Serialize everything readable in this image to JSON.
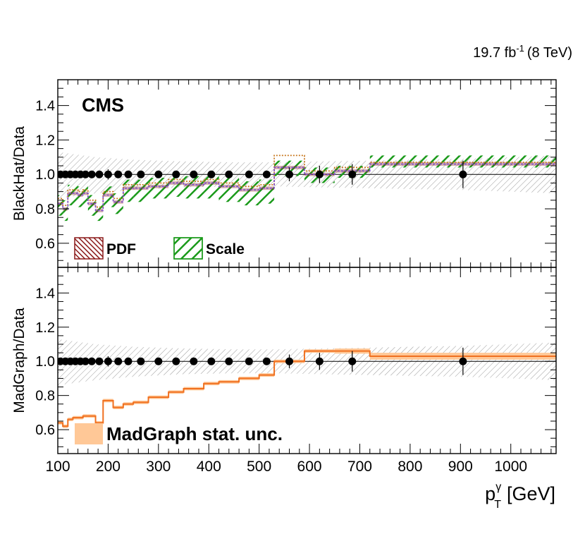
{
  "header": {
    "lumi_value": "19.7 fb",
    "lumi_exp": "-1",
    "lumi_energy": "(8 TeV)"
  },
  "x_axis": {
    "label_main": "p",
    "label_sup": "γ",
    "label_sub": "T",
    "label_unit": "[GeV]",
    "range": [
      100,
      1090
    ],
    "major_ticks": [
      100,
      200,
      300,
      400,
      500,
      600,
      700,
      800,
      900,
      1000
    ],
    "tick_labels": [
      "100",
      "200",
      "300",
      "400",
      "500",
      "600",
      "700",
      "800",
      "900",
      "1000"
    ]
  },
  "colors": {
    "pdf": "#8b1a1a",
    "scale": "#1a9a1a",
    "madgraph": "#f07020",
    "madgraph_band": "#ffc897",
    "hatch": "#9a9a9a",
    "data": "#000000"
  },
  "chart_data": [
    {
      "type": "line",
      "panel": "top",
      "badge": "CMS",
      "ylabel": "BlackHat/Data",
      "ylim": [
        0.46,
        1.55
      ],
      "y_ticks": [
        0.6,
        0.8,
        1.0,
        1.2,
        1.4
      ],
      "y_tick_labels": [
        "0.6",
        "0.8",
        "1.0",
        "1.2",
        "1.4"
      ],
      "legend": [
        {
          "key": "pdf",
          "label": "PDF"
        },
        {
          "key": "scale",
          "label": "Scale"
        }
      ],
      "bin_edges": [
        100,
        110,
        120,
        130,
        140,
        150,
        160,
        175,
        190,
        210,
        230,
        250,
        280,
        320,
        350,
        390,
        420,
        460,
        500,
        530,
        590,
        650,
        720,
        1090
      ],
      "central": [
        0.83,
        0.8,
        0.89,
        0.89,
        0.88,
        0.89,
        0.83,
        0.79,
        0.88,
        0.84,
        0.92,
        0.92,
        0.93,
        0.95,
        0.94,
        0.95,
        0.93,
        0.91,
        0.92,
        1.04,
        1.0,
        1.02,
        1.06
      ],
      "scale_band": {
        "low": [
          0.76,
          0.73,
          0.82,
          0.82,
          0.81,
          0.82,
          0.76,
          0.73,
          0.81,
          0.77,
          0.84,
          0.84,
          0.86,
          0.87,
          0.86,
          0.86,
          0.84,
          0.82,
          0.83,
          0.99,
          0.95,
          0.98,
          1.04
        ],
        "high": [
          0.88,
          0.85,
          0.94,
          0.94,
          0.93,
          0.94,
          0.88,
          0.84,
          0.93,
          0.89,
          0.97,
          0.97,
          0.98,
          1.0,
          0.99,
          1.0,
          0.98,
          0.96,
          0.97,
          1.08,
          1.04,
          1.05,
          1.11
        ]
      },
      "pdf_band": {
        "low": [
          0.82,
          0.79,
          0.88,
          0.88,
          0.87,
          0.88,
          0.82,
          0.78,
          0.87,
          0.83,
          0.91,
          0.91,
          0.92,
          0.94,
          0.93,
          0.94,
          0.92,
          0.9,
          0.91,
          1.03,
          0.99,
          1.01,
          1.05
        ],
        "high": [
          0.84,
          0.81,
          0.9,
          0.9,
          0.89,
          0.9,
          0.84,
          0.8,
          0.89,
          0.85,
          0.93,
          0.93,
          0.94,
          0.96,
          0.95,
          0.96,
          0.94,
          0.92,
          0.93,
          1.05,
          1.01,
          1.03,
          1.07
        ]
      },
      "alt_curve": [
        0.86,
        0.82,
        0.91,
        0.91,
        0.9,
        0.91,
        0.85,
        0.81,
        0.9,
        0.86,
        0.94,
        0.94,
        0.95,
        0.97,
        0.96,
        0.97,
        0.95,
        0.93,
        0.94,
        1.11,
        1.02,
        1.04,
        1.07
      ],
      "syst_band": {
        "x": [
          100,
          175,
          250,
          350,
          450,
          530,
          620,
          720,
          800,
          900,
          1000,
          1090
        ],
        "low": [
          0.86,
          0.89,
          0.91,
          0.925,
          0.93,
          0.93,
          0.925,
          0.92,
          0.915,
          0.91,
          0.9,
          0.89
        ],
        "high": [
          1.13,
          1.1,
          1.085,
          1.075,
          1.07,
          1.07,
          1.075,
          1.08,
          1.085,
          1.09,
          1.1,
          1.11
        ]
      },
      "data_points": {
        "x": [
          105,
          115,
          125,
          135,
          145,
          155,
          167.5,
          182.5,
          200,
          220,
          240,
          265,
          300,
          335,
          370,
          405,
          440,
          480,
          515,
          560,
          620,
          685,
          905
        ],
        "y": [
          1.0,
          1.0,
          1.0,
          1.0,
          1.0,
          1.0,
          1.0,
          1.0,
          1.0,
          1.0,
          1.0,
          1.0,
          1.0,
          1.0,
          1.0,
          1.0,
          1.0,
          1.0,
          1.0,
          1.0,
          1.0,
          1.0,
          1.0
        ],
        "err": [
          0.01,
          0.01,
          0.01,
          0.01,
          0.01,
          0.01,
          0.01,
          0.01,
          0.03,
          0.01,
          0.01,
          0.01,
          0.01,
          0.01,
          0.01,
          0.01,
          0.01,
          0.01,
          0.02,
          0.04,
          0.05,
          0.06,
          0.08
        ]
      }
    },
    {
      "type": "line",
      "panel": "bottom",
      "ylabel": "MadGraph/Data",
      "ylim": [
        0.46,
        1.55
      ],
      "y_ticks": [
        0.6,
        0.8,
        1.0,
        1.2,
        1.4
      ],
      "y_tick_labels": [
        "0.6",
        "0.8",
        "1.0",
        "1.2",
        "1.4"
      ],
      "legend": [
        {
          "key": "madgraph_band",
          "label": "MadGraph stat. unc."
        }
      ],
      "bin_edges": [
        100,
        110,
        120,
        130,
        140,
        150,
        160,
        175,
        190,
        210,
        230,
        250,
        280,
        320,
        350,
        390,
        420,
        460,
        500,
        530,
        590,
        650,
        720,
        1090
      ],
      "madgraph": [
        0.64,
        0.62,
        0.66,
        0.67,
        0.67,
        0.68,
        0.68,
        0.64,
        0.77,
        0.73,
        0.75,
        0.76,
        0.79,
        0.82,
        0.84,
        0.87,
        0.88,
        0.9,
        0.92,
        1.0,
        1.06,
        1.06,
        1.03
      ],
      "madgraph_err": [
        0.01,
        0.01,
        0.01,
        0.01,
        0.01,
        0.01,
        0.01,
        0.01,
        0.01,
        0.01,
        0.01,
        0.01,
        0.01,
        0.01,
        0.01,
        0.01,
        0.01,
        0.01,
        0.01,
        0.01,
        0.01,
        0.015,
        0.02
      ],
      "syst_band": {
        "x": [
          100,
          175,
          250,
          350,
          450,
          530,
          620,
          720,
          800,
          900,
          1000,
          1090
        ],
        "low": [
          0.86,
          0.89,
          0.91,
          0.925,
          0.93,
          0.93,
          0.925,
          0.92,
          0.915,
          0.91,
          0.9,
          0.89
        ],
        "high": [
          1.13,
          1.1,
          1.085,
          1.075,
          1.07,
          1.07,
          1.075,
          1.08,
          1.085,
          1.09,
          1.1,
          1.11
        ]
      },
      "data_points": {
        "x": [
          105,
          115,
          125,
          135,
          145,
          155,
          167.5,
          182.5,
          200,
          220,
          240,
          265,
          300,
          335,
          370,
          405,
          440,
          480,
          515,
          560,
          620,
          685,
          905
        ],
        "y": [
          1.0,
          1.0,
          1.0,
          1.0,
          1.0,
          1.0,
          1.0,
          1.0,
          1.0,
          1.0,
          1.0,
          1.0,
          1.0,
          1.0,
          1.0,
          1.0,
          1.0,
          1.0,
          1.0,
          1.0,
          1.0,
          1.0,
          1.0
        ],
        "err": [
          0.01,
          0.01,
          0.01,
          0.01,
          0.01,
          0.01,
          0.01,
          0.01,
          0.03,
          0.01,
          0.01,
          0.01,
          0.01,
          0.01,
          0.01,
          0.01,
          0.01,
          0.01,
          0.02,
          0.04,
          0.05,
          0.06,
          0.08
        ]
      }
    }
  ]
}
